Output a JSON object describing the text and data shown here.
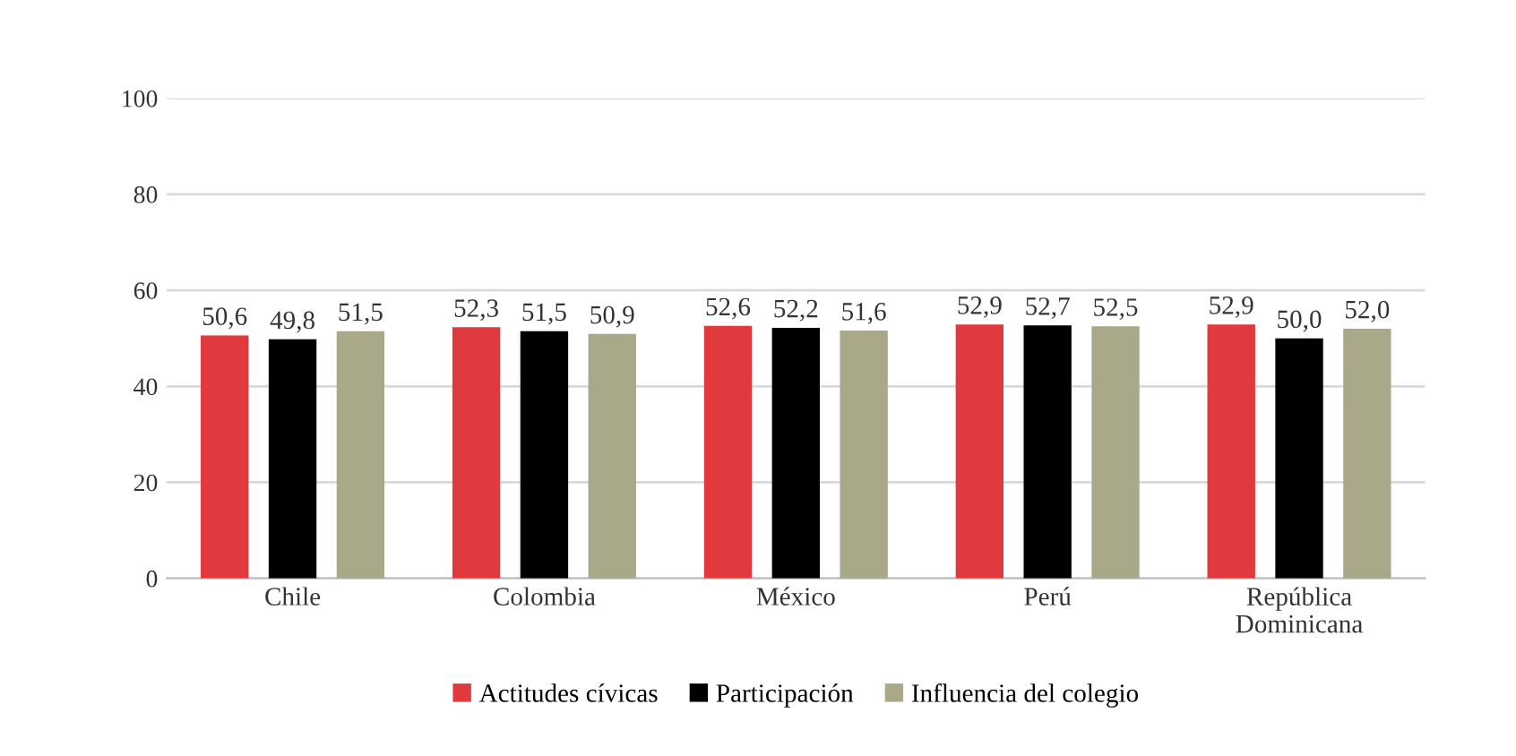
{
  "chart_data": {
    "type": "bar",
    "categories": [
      "Chile",
      "Colombia",
      "México",
      "Perú",
      "República Dominicana"
    ],
    "series": [
      {
        "name": "Actitudes cívicas",
        "color": "#e0393e",
        "values": [
          50.6,
          52.3,
          52.6,
          52.9,
          52.9
        ],
        "value_labels": [
          "50,6",
          "52,3",
          "52,6",
          "52,9",
          "52,9"
        ]
      },
      {
        "name": "Participación",
        "color": "#000000",
        "values": [
          49.8,
          51.5,
          52.2,
          52.7,
          50.0
        ],
        "value_labels": [
          "49,8",
          "51,5",
          "52,2",
          "52,7",
          "50,0"
        ]
      },
      {
        "name": "Influencia del colegio",
        "color": "#a9a98a",
        "values": [
          51.5,
          50.9,
          51.6,
          52.5,
          52.0
        ],
        "value_labels": [
          "51,5",
          "50,9",
          "51,6",
          "52,5",
          "52,0"
        ]
      }
    ],
    "ylim": [
      0,
      100
    ],
    "yticks": [
      0,
      20,
      40,
      60,
      80,
      100
    ],
    "grid": "y",
    "legend": "bottom"
  }
}
